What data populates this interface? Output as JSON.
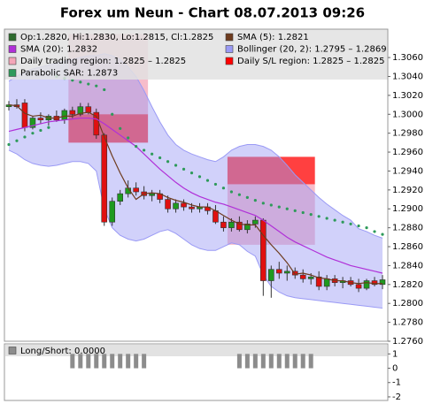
{
  "chart_data": [
    {
      "type": "candlestick",
      "title": "Forex um Neun - Chart 08.07.2013 09:26",
      "ylim": [
        1.276,
        1.309
      ],
      "yticks": [
        {
          "value": 1.276,
          "label": "1.2760"
        },
        {
          "value": 1.278,
          "label": "1.2780"
        },
        {
          "value": 1.28,
          "label": "1.2800"
        },
        {
          "value": 1.282,
          "label": "1.2820"
        },
        {
          "value": 1.284,
          "label": "1.2840"
        },
        {
          "value": 1.286,
          "label": "1.2860"
        },
        {
          "value": 1.288,
          "label": "1.2880"
        },
        {
          "value": 1.29,
          "label": "1.2900"
        },
        {
          "value": 1.292,
          "label": "1.2920"
        },
        {
          "value": 1.294,
          "label": "1.2940"
        },
        {
          "value": 1.296,
          "label": "1.2960"
        },
        {
          "value": 1.298,
          "label": "1.2980"
        },
        {
          "value": 1.3,
          "label": "1.3000"
        },
        {
          "value": 1.302,
          "label": "1.3020"
        },
        {
          "value": 1.304,
          "label": "1.3040"
        },
        {
          "value": 1.306,
          "label": "1.3060"
        }
      ],
      "grid": false,
      "candles": {
        "name": "Op:1.2820, Hi:1.2830, Lo:1.2815, Cl:1.2825",
        "color": "#2e6b2e",
        "up_color": "#1f9a1f",
        "down_color": "#e01010",
        "open": [
          1.3008,
          1.301,
          1.3012,
          1.2986,
          1.2996,
          1.2994,
          1.2998,
          1.2994,
          1.3004,
          1.3,
          1.3008,
          1.3002,
          1.2978,
          1.2886,
          1.2908,
          1.2916,
          1.2922,
          1.2918,
          1.2914,
          1.2916,
          1.291,
          1.29,
          1.2906,
          1.2902,
          1.29,
          1.2902,
          1.2898,
          1.2886,
          1.288,
          1.2886,
          1.2878,
          1.2884,
          1.2888,
          1.2824,
          1.2836,
          1.2832,
          1.2834,
          1.283,
          1.2826,
          1.2828,
          1.2818,
          1.2826,
          1.2822,
          1.2824,
          1.282,
          1.2816,
          1.2824,
          1.282
        ],
        "high": [
          1.3014,
          1.3016,
          1.3016,
          1.2998,
          1.3002,
          1.3,
          1.3004,
          1.3006,
          1.3008,
          1.3012,
          1.3012,
          1.3006,
          1.298,
          1.2912,
          1.292,
          1.293,
          1.2928,
          1.2924,
          1.292,
          1.292,
          1.2914,
          1.291,
          1.291,
          1.2906,
          1.2906,
          1.2906,
          1.2904,
          1.2892,
          1.289,
          1.2892,
          1.2888,
          1.2892,
          1.289,
          1.284,
          1.2844,
          1.284,
          1.2838,
          1.2836,
          1.2832,
          1.2834,
          1.283,
          1.283,
          1.2828,
          1.2828,
          1.2826,
          1.2826,
          1.2828,
          1.283
        ],
        "low": [
          1.3004,
          1.3006,
          1.2982,
          1.2984,
          1.299,
          1.2988,
          1.2992,
          1.299,
          1.2996,
          1.2998,
          1.3,
          1.2974,
          1.2882,
          1.2882,
          1.2904,
          1.2912,
          1.2914,
          1.291,
          1.2908,
          1.2906,
          1.2896,
          1.2896,
          1.2898,
          1.2896,
          1.2896,
          1.2894,
          1.2884,
          1.2876,
          1.2876,
          1.2876,
          1.2874,
          1.288,
          1.2808,
          1.2806,
          1.2826,
          1.2824,
          1.2826,
          1.2822,
          1.282,
          1.2814,
          1.2814,
          1.2818,
          1.2816,
          1.2818,
          1.2812,
          1.2814,
          1.2818,
          1.2815
        ],
        "close": [
          1.301,
          1.3008,
          1.2986,
          1.2996,
          1.2994,
          1.2998,
          1.2994,
          1.3004,
          1.3,
          1.3008,
          1.3002,
          1.2978,
          1.2886,
          1.2908,
          1.2916,
          1.2922,
          1.2918,
          1.2914,
          1.2916,
          1.291,
          1.29,
          1.2906,
          1.2902,
          1.29,
          1.2902,
          1.2898,
          1.2886,
          1.288,
          1.2886,
          1.2878,
          1.2884,
          1.2888,
          1.2824,
          1.2836,
          1.2832,
          1.2834,
          1.283,
          1.2826,
          1.2828,
          1.2818,
          1.2826,
          1.2822,
          1.2824,
          1.282,
          1.2816,
          1.2824,
          1.282,
          1.2825
        ]
      },
      "series": [
        {
          "name": "SMA (5): 1.2821",
          "color": "#6e3b1e",
          "type": "line",
          "values": [
            1.301,
            1.3009,
            1.3001,
            1.2998,
            1.2999,
            1.2996,
            1.2996,
            1.2998,
            1.2998,
            1.3001,
            1.3002,
            1.2998,
            1.2976,
            1.2956,
            1.2938,
            1.2922,
            1.291,
            1.2916,
            1.2917,
            1.2916,
            1.2912,
            1.2909,
            1.2907,
            1.2904,
            1.2902,
            1.2902,
            1.2898,
            1.2893,
            1.2888,
            1.2884,
            1.2883,
            1.2883,
            1.2872,
            1.2862,
            1.2853,
            1.2843,
            1.2831,
            1.2832,
            1.283,
            1.2827,
            1.2826,
            1.2824,
            1.2824,
            1.2822,
            1.2821,
            1.2822,
            1.2821,
            1.2821
          ]
        },
        {
          "name": "SMA (20): 1.2832",
          "color": "#b030d8",
          "type": "line",
          "values": [
            1.2982,
            1.2984,
            1.2986,
            1.2988,
            1.299,
            1.2992,
            1.2993,
            1.2994,
            1.2995,
            1.2996,
            1.2996,
            1.2995,
            1.299,
            1.2984,
            1.2978,
            1.2972,
            1.2966,
            1.2958,
            1.295,
            1.2942,
            1.2935,
            1.2928,
            1.2922,
            1.2917,
            1.2913,
            1.291,
            1.2907,
            1.2905,
            1.2902,
            1.2899,
            1.2896,
            1.2893,
            1.2888,
            1.2882,
            1.2876,
            1.287,
            1.2865,
            1.2861,
            1.2857,
            1.2853,
            1.2849,
            1.2846,
            1.2843,
            1.284,
            1.2838,
            1.2836,
            1.2834,
            1.2832
          ]
        },
        {
          "name": "Parabolic SAR: 1.2873",
          "color": "#2e9a5a",
          "type": "dots",
          "values": [
            1.2968,
            1.2972,
            1.2976,
            1.298,
            1.2983,
            1.2986,
            1.304,
            1.3038,
            1.3036,
            1.3034,
            1.3032,
            1.303,
            1.3026,
            1.3,
            1.2985,
            1.2975,
            1.2966,
            1.2962,
            1.2958,
            1.2954,
            1.295,
            1.2946,
            1.2942,
            1.2938,
            1.2934,
            1.293,
            1.2926,
            1.2922,
            1.2918,
            1.2915,
            1.2912,
            1.2909,
            1.2906,
            1.2904,
            1.2902,
            1.29,
            1.2898,
            1.2896,
            1.2894,
            1.2892,
            1.289,
            1.2888,
            1.2886,
            1.2884,
            1.2882,
            1.288,
            1.2876,
            1.2873
          ]
        }
      ],
      "bands": [
        {
          "name": "Bollinger (20, 2): 1.2795 – 1.2869",
          "color": "#9a9af5",
          "upper": [
            1.3035,
            1.304,
            1.3045,
            1.3048,
            1.305,
            1.3052,
            1.3054,
            1.3056,
            1.3058,
            1.306,
            1.3062,
            1.3062,
            1.3064,
            1.3062,
            1.3058,
            1.305,
            1.304,
            1.3025,
            1.3008,
            1.2992,
            1.2978,
            1.2968,
            1.2962,
            1.2958,
            1.2955,
            1.2952,
            1.295,
            1.2955,
            1.2962,
            1.2966,
            1.2968,
            1.2968,
            1.2966,
            1.2962,
            1.2955,
            1.2946,
            1.2936,
            1.2928,
            1.292,
            1.2912,
            1.2905,
            1.2899,
            1.2893,
            1.2888,
            1.2879,
            1.2876,
            1.2872,
            1.2869
          ],
          "lower": [
            1.2962,
            1.2958,
            1.2952,
            1.2948,
            1.2946,
            1.2945,
            1.2946,
            1.2948,
            1.295,
            1.295,
            1.2948,
            1.294,
            1.29,
            1.288,
            1.2872,
            1.2868,
            1.2866,
            1.2868,
            1.2872,
            1.2876,
            1.2878,
            1.2874,
            1.2868,
            1.2862,
            1.2858,
            1.2856,
            1.2856,
            1.286,
            1.2864,
            1.2862,
            1.2855,
            1.285,
            1.283,
            1.2818,
            1.2812,
            1.2808,
            1.2806,
            1.2805,
            1.2804,
            1.2803,
            1.2802,
            1.2801,
            1.28,
            1.2799,
            1.2798,
            1.2797,
            1.2796,
            1.2795
          ]
        }
      ],
      "regions": [
        {
          "name": "Daily trading region: 1.2825 – 1.2825",
          "color": "#f4a6b8",
          "items": [
            {
              "start": 7.5,
              "end": 17.5,
              "low": 1.3,
              "high": 1.3085
            },
            {
              "start": 27.5,
              "end": 38.5,
              "low": 1.2862,
              "high": 1.2926
            }
          ]
        },
        {
          "name": "Daily S/L region: 1.2825 – 1.2825",
          "color": "#ff0000",
          "items": [
            {
              "start": 7.5,
              "end": 17.5,
              "low": 1.297,
              "high": 1.3
            },
            {
              "start": 27.5,
              "end": 38.5,
              "low": 1.2926,
              "high": 1.2955
            }
          ]
        }
      ]
    },
    {
      "type": "bar",
      "ylim": [
        -2.25,
        1.7
      ],
      "yticks": [
        1,
        0,
        -1,
        -2
      ],
      "series": [
        {
          "name": "Long/Short: 0.0000",
          "color": "#8c8c8c",
          "values": [
            0,
            0,
            0,
            0,
            0,
            0,
            0,
            0,
            1,
            1,
            1,
            1,
            1,
            1,
            1,
            1,
            1,
            1,
            0,
            0,
            0,
            0,
            0,
            0,
            0,
            0,
            0,
            0,
            0,
            1,
            1,
            1,
            1,
            1,
            1,
            1,
            1,
            1,
            1,
            0,
            0,
            0,
            0,
            0,
            0,
            0,
            0,
            0
          ]
        }
      ]
    }
  ]
}
